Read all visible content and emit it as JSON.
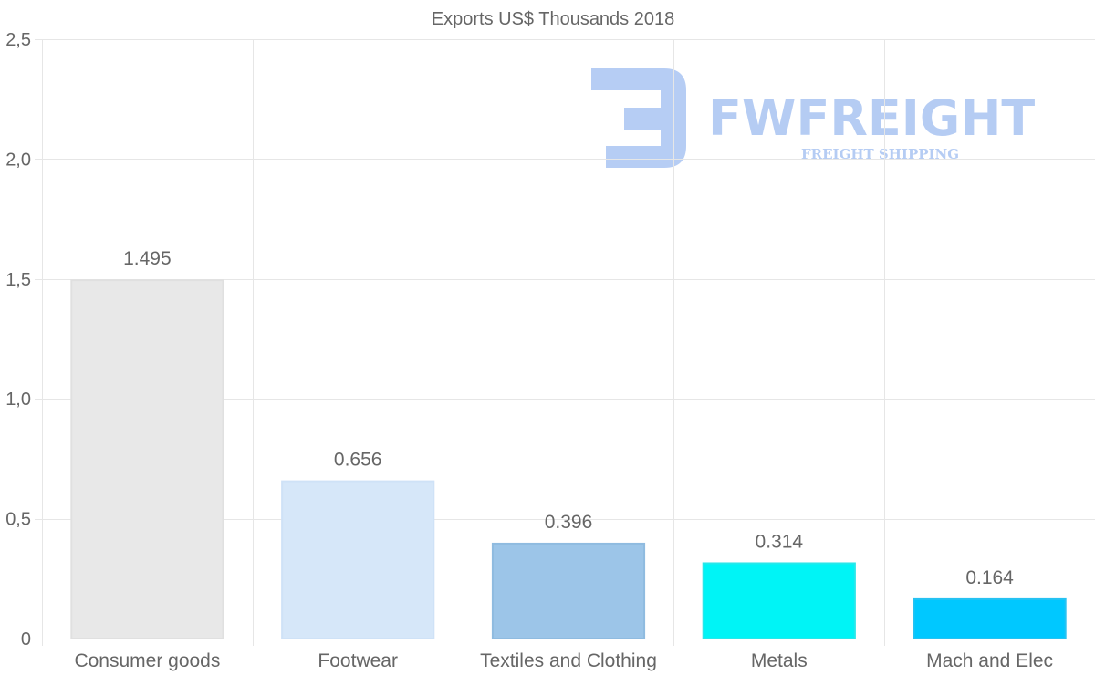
{
  "chart_data": {
    "type": "bar",
    "title": "Exports US$ Thousands 2018",
    "categories": [
      "Consumer goods",
      "Footwear",
      "Textiles and Clothing",
      "Metals",
      "Mach and Elec"
    ],
    "values": [
      1.495,
      0.656,
      0.396,
      0.314,
      0.164
    ],
    "value_labels": [
      "1.495",
      "0.656",
      "0.396",
      "0.314",
      "0.164"
    ],
    "bar_colors": [
      "#e8e8e8",
      "#d6e7f9",
      "#9cc5e8",
      "#00f4f6",
      "#00c8ff"
    ],
    "bar_border_colors": [
      "#e0e0e0",
      "#cfe2f7",
      "#8fbbe0",
      "#28e7ea",
      "#26c2f2"
    ],
    "ylim": [
      0,
      2.5
    ],
    "yticks": [
      0,
      0.5,
      1.0,
      1.5,
      2.0,
      2.5
    ],
    "ytick_labels": [
      "0",
      "0,5",
      "1,0",
      "1,5",
      "2,0",
      "2,5"
    ],
    "xlabel": "",
    "ylabel": "",
    "grid": true,
    "legend": "none"
  },
  "watermark": {
    "brand": "FWFREIGHT",
    "tagline": "FREIGHT SHIPPING",
    "color": "#a9c4f2"
  }
}
